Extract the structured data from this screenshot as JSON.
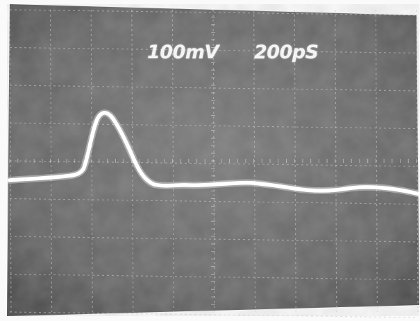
{
  "oscilloscope": {
    "volts_per_div": "100mV",
    "time_per_div": "200pS",
    "screen_color": "#6e6e6e",
    "trace_color": "#ffffff",
    "graticule_color": "#c8c8c8"
  }
}
